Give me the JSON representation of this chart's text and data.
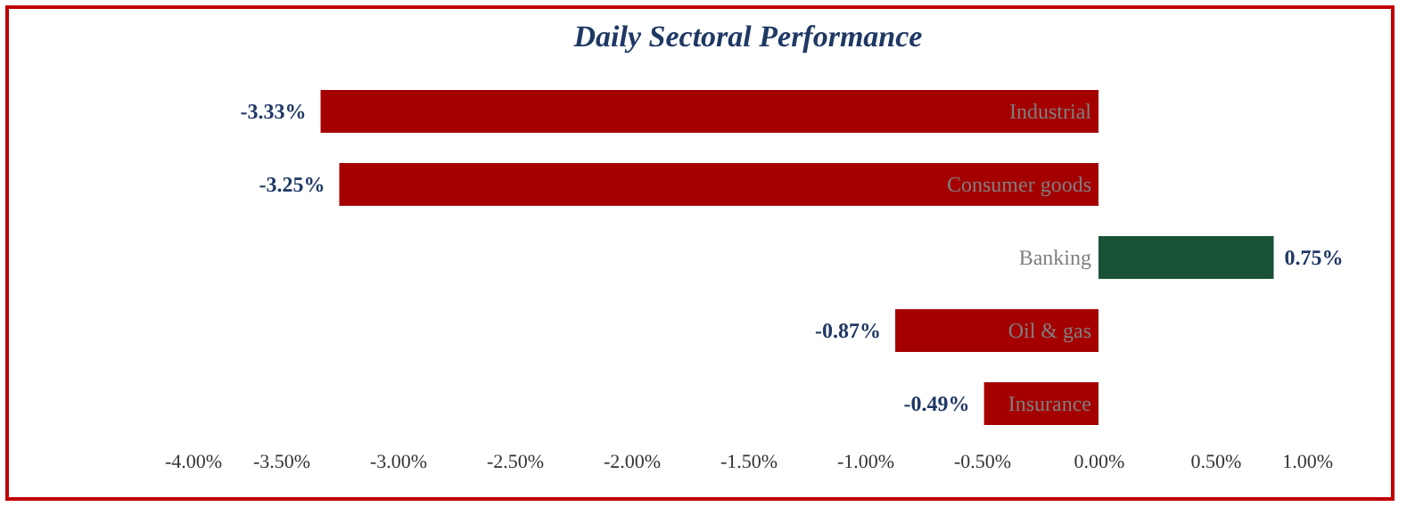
{
  "chart_data": {
    "type": "bar",
    "title": "Daily Sectoral Performance",
    "orientation": "horizontal",
    "categories": [
      "Industrial",
      "Consumer goods",
      "Banking",
      "Oil & gas",
      "Insurance"
    ],
    "values": [
      -3.33,
      -3.25,
      0.75,
      -0.87,
      -0.49
    ],
    "colors": [
      "#a50000",
      "#a50000",
      "#1a5237",
      "#a50000",
      "#a50000"
    ],
    "value_labels": [
      "-3.33%",
      "-3.25%",
      "0.75%",
      "-0.87%",
      "-0.49%"
    ],
    "xlim": [
      -4,
      1
    ],
    "xticks": [
      {
        "value": -4,
        "label": "-4.00%"
      },
      {
        "value": -3.5,
        "label": "-3.50%"
      },
      {
        "value": -3,
        "label": "-3.00%"
      },
      {
        "value": -2.5,
        "label": "-2.50%"
      },
      {
        "value": -2,
        "label": "-2.00%"
      },
      {
        "value": -1.5,
        "label": "-1.50%"
      },
      {
        "value": -1,
        "label": "-1.00%"
      },
      {
        "value": -0.5,
        "label": "-0.50%"
      },
      {
        "value": 0,
        "label": "0.00%"
      },
      {
        "value": 0.5,
        "label": "0.50%"
      },
      {
        "value": 1,
        "label": "1.00%"
      }
    ],
    "grid": false
  }
}
